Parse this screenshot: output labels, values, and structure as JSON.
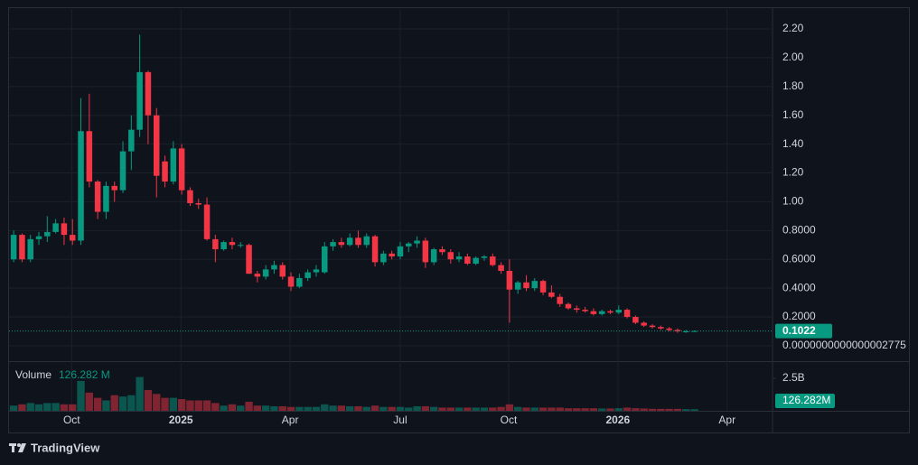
{
  "chart_data": {
    "type": "candlestick",
    "source": "TradingView",
    "categories": [
      null,
      null,
      null,
      null,
      null,
      null,
      null,
      null,
      null,
      null,
      null,
      null,
      null,
      null,
      null,
      null,
      null,
      null,
      null,
      null,
      null,
      null,
      null,
      null,
      null,
      null,
      null,
      null,
      null,
      null,
      null,
      null,
      null,
      null,
      null,
      null,
      null,
      null,
      null,
      null,
      null,
      null,
      null,
      null,
      null,
      null,
      null,
      null,
      null,
      null,
      null,
      null,
      null,
      null,
      null,
      null,
      null,
      null,
      null,
      null,
      null,
      null,
      null,
      null,
      null,
      null,
      null,
      null,
      null,
      null,
      null,
      null,
      null,
      null,
      null,
      null,
      null,
      null,
      null,
      null,
      null,
      null
    ],
    "open": [
      0.6,
      0.77,
      0.6,
      0.74,
      0.76,
      0.79,
      0.85,
      0.77,
      0.73,
      1.49,
      1.14,
      0.93,
      1.11,
      1.08,
      1.35,
      1.5,
      1.9,
      1.6,
      1.28,
      1.14,
      1.37,
      1.08,
      0.99,
      0.98,
      0.74,
      0.67,
      0.72,
      0.7,
      0.7,
      0.5,
      0.48,
      0.53,
      0.56,
      0.48,
      0.41,
      0.47,
      0.51,
      0.51,
      0.69,
      0.72,
      0.7,
      0.75,
      0.7,
      0.76,
      0.58,
      0.64,
      0.62,
      0.69,
      0.71,
      0.73,
      0.58,
      0.67,
      0.65,
      0.6,
      0.62,
      0.57,
      0.61,
      0.62,
      0.56,
      0.52,
      0.39,
      0.44,
      0.4,
      0.45,
      0.37,
      0.34,
      0.29,
      0.26,
      0.25,
      0.24,
      0.22,
      0.24,
      0.23,
      0.25,
      0.2,
      0.16,
      0.14,
      0.13,
      0.12,
      0.11,
      0.1,
      0.101
    ],
    "high": [
      0.8,
      0.78,
      0.77,
      0.79,
      0.9,
      0.88,
      0.89,
      0.88,
      1.72,
      1.75,
      1.15,
      1.14,
      1.14,
      1.42,
      1.6,
      2.16,
      1.91,
      1.65,
      1.32,
      1.42,
      1.4,
      1.1,
      1.02,
      1.03,
      0.77,
      0.73,
      0.75,
      0.72,
      0.71,
      0.52,
      0.56,
      0.59,
      0.58,
      0.51,
      0.5,
      0.53,
      0.56,
      0.72,
      0.74,
      0.75,
      0.78,
      0.8,
      0.78,
      0.77,
      0.66,
      0.66,
      0.72,
      0.72,
      0.76,
      0.75,
      0.68,
      0.69,
      0.67,
      0.65,
      0.64,
      0.62,
      0.63,
      0.64,
      0.58,
      0.6,
      0.45,
      0.49,
      0.47,
      0.46,
      0.42,
      0.36,
      0.3,
      0.28,
      0.27,
      0.26,
      0.25,
      0.25,
      0.28,
      0.26,
      0.21,
      0.17,
      0.15,
      0.14,
      0.13,
      0.12,
      0.11,
      0.106
    ],
    "low": [
      0.58,
      0.58,
      0.58,
      0.7,
      0.72,
      0.78,
      0.7,
      0.7,
      0.7,
      1.1,
      0.88,
      0.88,
      1.0,
      1.06,
      1.22,
      1.45,
      1.4,
      1.03,
      1.1,
      1.12,
      1.05,
      0.97,
      0.95,
      0.73,
      0.58,
      0.66,
      0.67,
      0.68,
      0.5,
      0.44,
      0.46,
      0.5,
      0.46,
      0.38,
      0.4,
      0.45,
      0.48,
      0.5,
      0.66,
      0.68,
      0.69,
      0.68,
      0.68,
      0.55,
      0.56,
      0.6,
      0.6,
      0.65,
      0.68,
      0.54,
      0.56,
      0.63,
      0.57,
      0.58,
      0.56,
      0.56,
      0.59,
      0.55,
      0.5,
      0.16,
      0.36,
      0.38,
      0.38,
      0.35,
      0.33,
      0.27,
      0.25,
      0.23,
      0.23,
      0.21,
      0.21,
      0.22,
      0.22,
      0.19,
      0.15,
      0.13,
      0.12,
      0.11,
      0.1,
      0.09,
      0.09,
      0.098
    ],
    "close": [
      0.77,
      0.6,
      0.74,
      0.76,
      0.79,
      0.85,
      0.77,
      0.73,
      1.49,
      1.14,
      0.93,
      1.11,
      1.08,
      1.35,
      1.5,
      1.9,
      1.6,
      1.18,
      1.14,
      1.37,
      1.08,
      0.99,
      0.98,
      0.74,
      0.67,
      0.72,
      0.7,
      0.7,
      0.5,
      0.48,
      0.53,
      0.56,
      0.48,
      0.41,
      0.47,
      0.51,
      0.53,
      0.69,
      0.72,
      0.7,
      0.75,
      0.7,
      0.76,
      0.58,
      0.64,
      0.62,
      0.69,
      0.71,
      0.73,
      0.58,
      0.67,
      0.65,
      0.6,
      0.62,
      0.57,
      0.61,
      0.62,
      0.56,
      0.52,
      0.39,
      0.44,
      0.4,
      0.45,
      0.37,
      0.34,
      0.29,
      0.26,
      0.25,
      0.24,
      0.22,
      0.24,
      0.23,
      0.25,
      0.2,
      0.16,
      0.14,
      0.13,
      0.12,
      0.11,
      0.1,
      0.1,
      0.1022
    ],
    "last_price_label": "0.1022",
    "up_color": "#089981",
    "down_color": "#f23645",
    "xlim": [
      -0.55,
      90.3
    ],
    "xticks": [
      {
        "value": 6.9,
        "label": "Oct"
      },
      {
        "value": 19.9,
        "label": "2025"
      },
      {
        "value": 32.9,
        "label": "Apr"
      },
      {
        "value": 46,
        "label": "Jul"
      },
      {
        "value": 58.9,
        "label": "Oct"
      },
      {
        "value": 71.9,
        "label": "2026"
      },
      {
        "value": 84.9,
        "label": "Apr"
      }
    ],
    "ylim": [
      -0.107,
      2.338
    ],
    "yticks": [
      {
        "value": 2.775e-16,
        "label": "0.0000000000000002775"
      },
      {
        "value": 0.2,
        "label": "0.2000"
      },
      {
        "value": 0.4,
        "label": "0.4000"
      },
      {
        "value": 0.6,
        "label": "0.6000"
      },
      {
        "value": 0.8,
        "label": "0.8000"
      },
      {
        "value": 1.0,
        "label": "1.00"
      },
      {
        "value": 1.2,
        "label": "1.20"
      },
      {
        "value": 1.4,
        "label": "1.40"
      },
      {
        "value": 1.6,
        "label": "1.60"
      },
      {
        "value": 1.8,
        "label": "1.80"
      },
      {
        "value": 2.0,
        "label": "2.00"
      },
      {
        "value": 2.2,
        "label": "2.20"
      }
    ],
    "grid": true,
    "volume": {
      "name": "Volume",
      "values": [
        400000000,
        500000000,
        600000000,
        500000000,
        600000000,
        600000000,
        500000000,
        500000000,
        2300000000,
        1400000000,
        1000000000,
        800000000,
        1200000000,
        1100000000,
        1200000000,
        2600000000,
        1600000000,
        1300000000,
        1000000000,
        1000000000,
        900000000,
        800000000,
        800000000,
        800000000,
        600000000,
        400000000,
        500000000,
        400000000,
        700000000,
        400000000,
        400000000,
        350000000,
        350000000,
        300000000,
        300000000,
        300000000,
        300000000,
        500000000,
        400000000,
        400000000,
        350000000,
        350000000,
        300000000,
        400000000,
        300000000,
        300000000,
        300000000,
        250000000,
        350000000,
        350000000,
        300000000,
        250000000,
        250000000,
        250000000,
        250000000,
        250000000,
        250000000,
        250000000,
        300000000,
        500000000,
        300000000,
        250000000,
        250000000,
        250000000,
        250000000,
        250000000,
        200000000,
        200000000,
        200000000,
        200000000,
        180000000,
        180000000,
        200000000,
        250000000,
        200000000,
        180000000,
        150000000,
        150000000,
        150000000,
        150000000,
        130000000,
        126282000
      ],
      "legend_label": "126.282 M",
      "badge_label": "126.282M",
      "ylim": [
        0,
        3820000000
      ],
      "yticks": [
        {
          "value": 2500000000,
          "label": "2.5B"
        }
      ]
    }
  }
}
